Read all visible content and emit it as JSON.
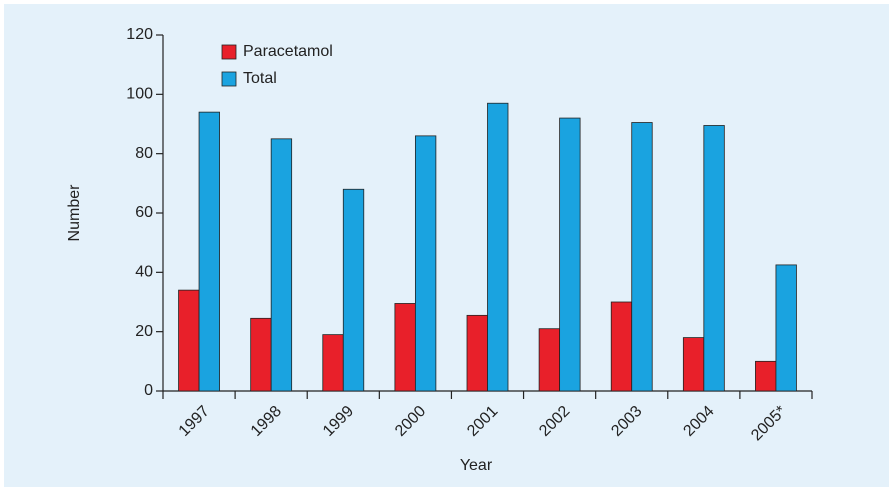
{
  "chart_data": {
    "type": "bar",
    "x_label": "Year",
    "y_label": "Number",
    "categories": [
      "1997",
      "1998",
      "1999",
      "2000",
      "2001",
      "2002",
      "2003",
      "2004",
      "2005*"
    ],
    "series": [
      {
        "name": "Paracetamol",
        "color": "#e8202a",
        "values": [
          34,
          24.5,
          19,
          29.5,
          25.5,
          21,
          30,
          18,
          10
        ]
      },
      {
        "name": "Total",
        "color": "#1aa3e0",
        "values": [
          94,
          85,
          68,
          86,
          97,
          92,
          90.5,
          89.5,
          42.5
        ]
      }
    ],
    "ylim": [
      0,
      120
    ],
    "yticks": [
      0,
      20,
      40,
      60,
      80,
      100,
      120
    ],
    "legend": "upper left"
  }
}
